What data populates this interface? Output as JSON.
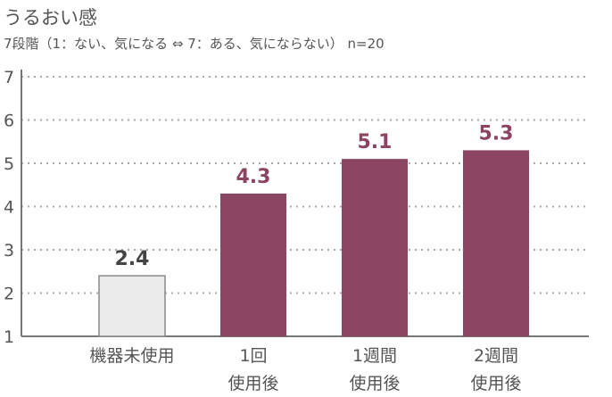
{
  "title": "うるおい感",
  "subtitle": "7段階（1：ない、気になる ⇔ 7：ある、気にならない） n=20",
  "colors": {
    "accent": "#8b4462",
    "baseline_bar": "#ececec",
    "baseline_stroke": "#888888",
    "baseline_label": "#444444",
    "grid": "#aaaaaa",
    "axis": "#777777"
  },
  "chart_data": {
    "type": "bar",
    "title": "うるおい感",
    "subtitle": "7段階（1：ない、気になる ⇔ 7：ある、気にならない） n=20",
    "categories": [
      [
        "機器未使用"
      ],
      [
        "1回",
        "使用後"
      ],
      [
        "1週間",
        "使用後"
      ],
      [
        "2週間",
        "使用後"
      ]
    ],
    "values": [
      2.4,
      4.3,
      5.1,
      5.3
    ],
    "value_labels": [
      "2.4",
      "4.3",
      "5.1",
      "5.3"
    ],
    "ylim": [
      1,
      7
    ],
    "yticks": [
      1,
      2,
      3,
      4,
      5,
      6,
      7
    ],
    "grid": true,
    "legend": "none"
  }
}
